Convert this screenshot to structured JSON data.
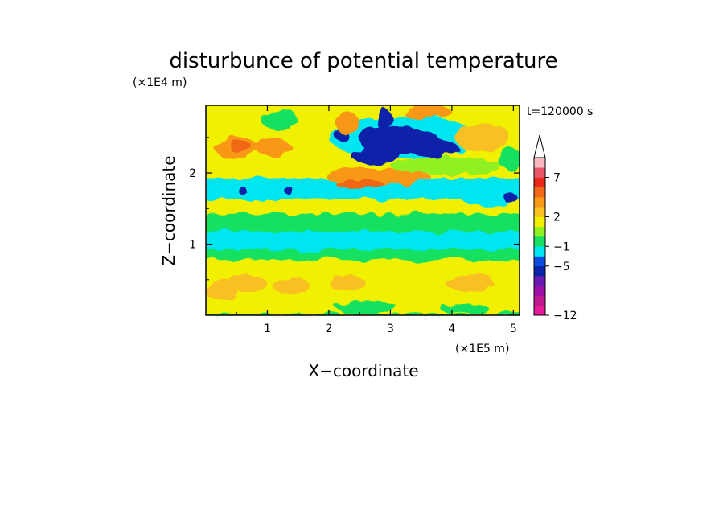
{
  "chart_data": {
    "type": "heatmap",
    "title": "disturbunce of potential temperature",
    "xlabel": "X−coordinate",
    "ylabel": "Z−coordinate",
    "x_scale_label": "(×1E5 m)",
    "y_scale_label": "(×1E4 m)",
    "time_label": "t=120000 s",
    "xlim": [
      0,
      5.1
    ],
    "ylim": [
      0,
      2.95
    ],
    "x_ticks": [
      1,
      2,
      3,
      4,
      5
    ],
    "y_ticks": [
      1,
      2
    ],
    "grid": false,
    "legend": "right",
    "colorbar": {
      "colors": [
        "#e8189a",
        "#c0178f",
        "#9a10a8",
        "#6a1ab4",
        "#0a24a8",
        "#0a4ce0",
        "#00e6f0",
        "#18e060",
        "#90f020",
        "#f0f000",
        "#f8c020",
        "#f89818",
        "#f06818",
        "#e82818",
        "#e85868",
        "#f8b8c0"
      ],
      "tick_labels": [
        "−12",
        "−5",
        "−1",
        "2",
        "7"
      ],
      "tick_boundaries": [
        0,
        5,
        7,
        10,
        14
      ],
      "extend_top": true
    },
    "field": {
      "layers": [
        {
          "z": [
            0.0,
            0.05
          ],
          "color": "#18e060"
        },
        {
          "z": [
            0.05,
            0.55
          ],
          "color": "#f0f000"
        },
        {
          "z": [
            0.55,
            0.8
          ],
          "color": "#f0f000"
        },
        {
          "z": [
            0.8,
            0.95
          ],
          "color": "#18e060"
        },
        {
          "z": [
            0.95,
            1.2
          ],
          "color": "#00e6f0"
        },
        {
          "z": [
            1.2,
            1.45
          ],
          "color": "#18e060"
        },
        {
          "z": [
            1.45,
            1.65
          ],
          "color": "#f0f000"
        },
        {
          "z": [
            1.65,
            1.95
          ],
          "color": "#00e6f0"
        },
        {
          "z": [
            1.95,
            2.35
          ],
          "color": "#f0f000"
        },
        {
          "z": [
            2.35,
            2.95
          ],
          "color": "#f0f000"
        }
      ],
      "blobs": [
        {
          "x": 0.5,
          "z": 2.35,
          "rx": 0.35,
          "rz": 0.15,
          "color": "#f89818"
        },
        {
          "x": 0.55,
          "z": 2.38,
          "rx": 0.18,
          "rz": 0.08,
          "color": "#f06818"
        },
        {
          "x": 1.1,
          "z": 2.35,
          "rx": 0.3,
          "rz": 0.12,
          "color": "#f89818"
        },
        {
          "x": 0.25,
          "z": 0.35,
          "rx": 0.25,
          "rz": 0.15,
          "color": "#f8c020"
        },
        {
          "x": 0.7,
          "z": 0.45,
          "rx": 0.3,
          "rz": 0.12,
          "color": "#f8c020"
        },
        {
          "x": 1.4,
          "z": 0.4,
          "rx": 0.3,
          "rz": 0.12,
          "color": "#f8c020"
        },
        {
          "x": 2.3,
          "z": 0.45,
          "rx": 0.3,
          "rz": 0.1,
          "color": "#f8c020"
        },
        {
          "x": 4.3,
          "z": 0.45,
          "rx": 0.4,
          "rz": 0.12,
          "color": "#f8c020"
        },
        {
          "x": 2.6,
          "z": 0.12,
          "rx": 0.5,
          "rz": 0.08,
          "color": "#18e060"
        },
        {
          "x": 4.2,
          "z": 0.1,
          "rx": 0.4,
          "rz": 0.06,
          "color": "#18e060"
        },
        {
          "x": 1.7,
          "z": 1.0,
          "rx": 0.3,
          "rz": 0.12,
          "color": "#00e6f0"
        },
        {
          "x": 2.8,
          "z": 1.95,
          "rx": 0.85,
          "rz": 0.12,
          "color": "#f89818"
        },
        {
          "x": 2.5,
          "z": 1.85,
          "rx": 0.4,
          "rz": 0.06,
          "color": "#f06818"
        },
        {
          "x": 3.9,
          "z": 2.1,
          "rx": 0.9,
          "rz": 0.12,
          "color": "#90f020"
        },
        {
          "x": 0.35,
          "z": 1.8,
          "rx": 0.35,
          "rz": 0.1,
          "color": "#00e6f0"
        },
        {
          "x": 4.6,
          "z": 1.65,
          "rx": 0.45,
          "rz": 0.1,
          "color": "#00e6f0"
        },
        {
          "x": 1.0,
          "z": 1.72,
          "rx": 0.5,
          "rz": 0.08,
          "color": "#00e6f0"
        },
        {
          "x": 3.2,
          "z": 2.5,
          "rx": 1.2,
          "rz": 0.3,
          "color": "#00e6f0"
        },
        {
          "x": 3.15,
          "z": 2.45,
          "rx": 0.65,
          "rz": 0.2,
          "color": "#0a24a8"
        },
        {
          "x": 2.75,
          "z": 2.25,
          "rx": 0.4,
          "rz": 0.12,
          "color": "#0a24a8"
        },
        {
          "x": 3.7,
          "z": 2.35,
          "rx": 0.4,
          "rz": 0.13,
          "color": "#0a24a8"
        },
        {
          "x": 2.9,
          "z": 2.75,
          "rx": 0.12,
          "rz": 0.15,
          "color": "#0a24a8"
        },
        {
          "x": 2.2,
          "z": 2.55,
          "rx": 0.12,
          "rz": 0.1,
          "color": "#0a24a8"
        },
        {
          "x": 2.3,
          "z": 2.7,
          "rx": 0.2,
          "rz": 0.15,
          "color": "#f89818"
        },
        {
          "x": 3.6,
          "z": 2.85,
          "rx": 0.4,
          "rz": 0.1,
          "color": "#f89818"
        },
        {
          "x": 4.5,
          "z": 2.5,
          "rx": 0.45,
          "rz": 0.2,
          "color": "#f8c020"
        },
        {
          "x": 4.95,
          "z": 2.2,
          "rx": 0.2,
          "rz": 0.15,
          "color": "#18e060"
        },
        {
          "x": 1.2,
          "z": 2.75,
          "rx": 0.3,
          "rz": 0.15,
          "color": "#18e060"
        },
        {
          "x": 0.6,
          "z": 1.75,
          "rx": 0.08,
          "rz": 0.05,
          "color": "#0a24a8"
        },
        {
          "x": 1.35,
          "z": 1.75,
          "rx": 0.08,
          "rz": 0.05,
          "color": "#0a24a8"
        },
        {
          "x": 4.95,
          "z": 1.65,
          "rx": 0.12,
          "rz": 0.06,
          "color": "#0a24a8"
        }
      ]
    }
  }
}
